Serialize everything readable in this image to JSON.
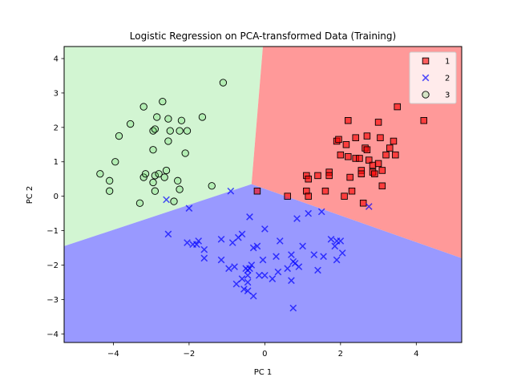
{
  "chart_data": {
    "type": "scatter",
    "title": "Logistic Regression on PCA-transformed Data (Training)",
    "xlabel": "PC 1",
    "ylabel": "PC 2",
    "xlim": [
      -5.3,
      5.2
    ],
    "ylim": [
      -4.25,
      4.35
    ],
    "xticks": [
      -4,
      -2,
      0,
      2,
      4
    ],
    "yticks": [
      -4,
      -3,
      -2,
      -1,
      0,
      1,
      2,
      3,
      4
    ],
    "legend_position": "top-right",
    "decision_regions": [
      {
        "label": "1",
        "color": "#ff9999"
      },
      {
        "label": "2",
        "color": "#9999ff"
      },
      {
        "label": "3",
        "color": "#d2f5d2"
      }
    ],
    "decision_boundaries": {
      "vertex": [
        -0.35,
        0.35
      ],
      "to_top": [
        -0.05,
        4.35
      ],
      "to_left": [
        -5.3,
        -1.45
      ],
      "to_right": [
        5.2,
        -1.8
      ]
    },
    "series": [
      {
        "name": "1",
        "marker": "square",
        "color": "#ff0000",
        "points": [
          [
            -0.2,
            0.15
          ],
          [
            0.6,
            0.0
          ],
          [
            1.1,
            0.6
          ],
          [
            1.15,
            0.5
          ],
          [
            1.1,
            0.15
          ],
          [
            1.15,
            0.0
          ],
          [
            1.4,
            0.6
          ],
          [
            1.6,
            0.15
          ],
          [
            1.7,
            0.7
          ],
          [
            1.7,
            0.6
          ],
          [
            1.9,
            1.6
          ],
          [
            1.95,
            1.65
          ],
          [
            2.0,
            1.2
          ],
          [
            2.1,
            0.0
          ],
          [
            2.15,
            1.5
          ],
          [
            2.2,
            2.2
          ],
          [
            2.2,
            1.15
          ],
          [
            2.25,
            0.55
          ],
          [
            2.3,
            0.15
          ],
          [
            2.4,
            1.1
          ],
          [
            2.4,
            1.7
          ],
          [
            2.5,
            1.1
          ],
          [
            2.55,
            0.75
          ],
          [
            2.55,
            0.65
          ],
          [
            2.6,
            -0.2
          ],
          [
            2.65,
            1.4
          ],
          [
            2.7,
            1.35
          ],
          [
            2.7,
            1.75
          ],
          [
            2.75,
            1.05
          ],
          [
            2.85,
            0.9
          ],
          [
            2.85,
            0.7
          ],
          [
            2.9,
            0.65
          ],
          [
            3.0,
            2.15
          ],
          [
            3.0,
            0.95
          ],
          [
            3.05,
            1.7
          ],
          [
            3.1,
            0.3
          ],
          [
            3.1,
            0.75
          ],
          [
            3.2,
            1.2
          ],
          [
            3.3,
            1.4
          ],
          [
            3.4,
            1.6
          ],
          [
            3.45,
            1.2
          ],
          [
            3.5,
            2.6
          ],
          [
            4.2,
            2.2
          ]
        ]
      },
      {
        "name": "2",
        "marker": "x",
        "color": "#0000ff",
        "points": [
          [
            -2.6,
            -0.1
          ],
          [
            -0.9,
            0.15
          ],
          [
            -2.0,
            -0.35
          ],
          [
            -2.55,
            -1.1
          ],
          [
            -2.05,
            -1.35
          ],
          [
            -1.9,
            -1.4
          ],
          [
            -1.75,
            -1.3
          ],
          [
            -1.8,
            -1.4
          ],
          [
            -1.6,
            -1.55
          ],
          [
            -1.6,
            -1.8
          ],
          [
            -1.15,
            -1.25
          ],
          [
            -1.15,
            -1.85
          ],
          [
            -0.95,
            -2.1
          ],
          [
            -0.85,
            -1.35
          ],
          [
            -0.8,
            -2.05
          ],
          [
            -0.7,
            -1.2
          ],
          [
            -0.75,
            -2.55
          ],
          [
            -0.6,
            -2.4
          ],
          [
            -0.6,
            -1.1
          ],
          [
            -0.55,
            -2.7
          ],
          [
            -0.5,
            -2.1
          ],
          [
            -0.45,
            -2.15
          ],
          [
            -0.45,
            -2.3
          ],
          [
            -0.45,
            -2.5
          ],
          [
            -0.45,
            -2.75
          ],
          [
            -0.4,
            -2.1
          ],
          [
            -0.4,
            -0.6
          ],
          [
            -0.35,
            -2.0
          ],
          [
            -0.3,
            -1.5
          ],
          [
            -0.3,
            -2.9
          ],
          [
            -0.2,
            -1.45
          ],
          [
            -0.15,
            -2.3
          ],
          [
            -0.05,
            -1.85
          ],
          [
            0.0,
            -2.3
          ],
          [
            0.0,
            -0.95
          ],
          [
            0.2,
            -2.4
          ],
          [
            0.3,
            -1.75
          ],
          [
            0.35,
            -2.2
          ],
          [
            0.4,
            -1.3
          ],
          [
            0.6,
            -2.1
          ],
          [
            0.7,
            -1.7
          ],
          [
            0.7,
            -2.45
          ],
          [
            0.75,
            -1.9
          ],
          [
            0.75,
            -3.25
          ],
          [
            0.8,
            -1.95
          ],
          [
            0.85,
            -0.65
          ],
          [
            0.9,
            -2.05
          ],
          [
            1.0,
            -1.45
          ],
          [
            1.15,
            -0.5
          ],
          [
            1.3,
            -1.7
          ],
          [
            1.4,
            -2.15
          ],
          [
            1.5,
            -0.45
          ],
          [
            1.55,
            -1.75
          ],
          [
            1.75,
            -1.25
          ],
          [
            1.85,
            -1.45
          ],
          [
            1.9,
            -1.3
          ],
          [
            1.9,
            -1.85
          ],
          [
            2.0,
            -1.3
          ],
          [
            2.05,
            -1.65
          ],
          [
            2.75,
            -0.3
          ]
        ]
      },
      {
        "name": "3",
        "marker": "circle",
        "color": "#33cc33",
        "points": [
          [
            -4.35,
            0.65
          ],
          [
            -4.1,
            0.45
          ],
          [
            -4.1,
            0.15
          ],
          [
            -3.95,
            1.0
          ],
          [
            -3.85,
            1.75
          ],
          [
            -3.55,
            2.1
          ],
          [
            -3.3,
            -0.2
          ],
          [
            -3.2,
            2.6
          ],
          [
            -3.2,
            0.55
          ],
          [
            -3.15,
            0.65
          ],
          [
            -2.95,
            1.35
          ],
          [
            -2.95,
            1.9
          ],
          [
            -2.95,
            0.4
          ],
          [
            -2.9,
            0.15
          ],
          [
            -2.9,
            1.95
          ],
          [
            -2.9,
            0.6
          ],
          [
            -2.85,
            2.3
          ],
          [
            -2.8,
            0.65
          ],
          [
            -2.7,
            2.75
          ],
          [
            -2.65,
            0.55
          ],
          [
            -2.6,
            0.75
          ],
          [
            -2.55,
            2.25
          ],
          [
            -2.55,
            1.6
          ],
          [
            -2.5,
            1.9
          ],
          [
            -2.4,
            -0.15
          ],
          [
            -2.3,
            0.45
          ],
          [
            -2.25,
            0.2
          ],
          [
            -2.25,
            1.9
          ],
          [
            -2.2,
            2.2
          ],
          [
            -2.1,
            1.25
          ],
          [
            -2.05,
            1.9
          ],
          [
            -1.65,
            2.3
          ],
          [
            -1.4,
            0.3
          ],
          [
            -1.1,
            3.3
          ]
        ]
      }
    ]
  }
}
